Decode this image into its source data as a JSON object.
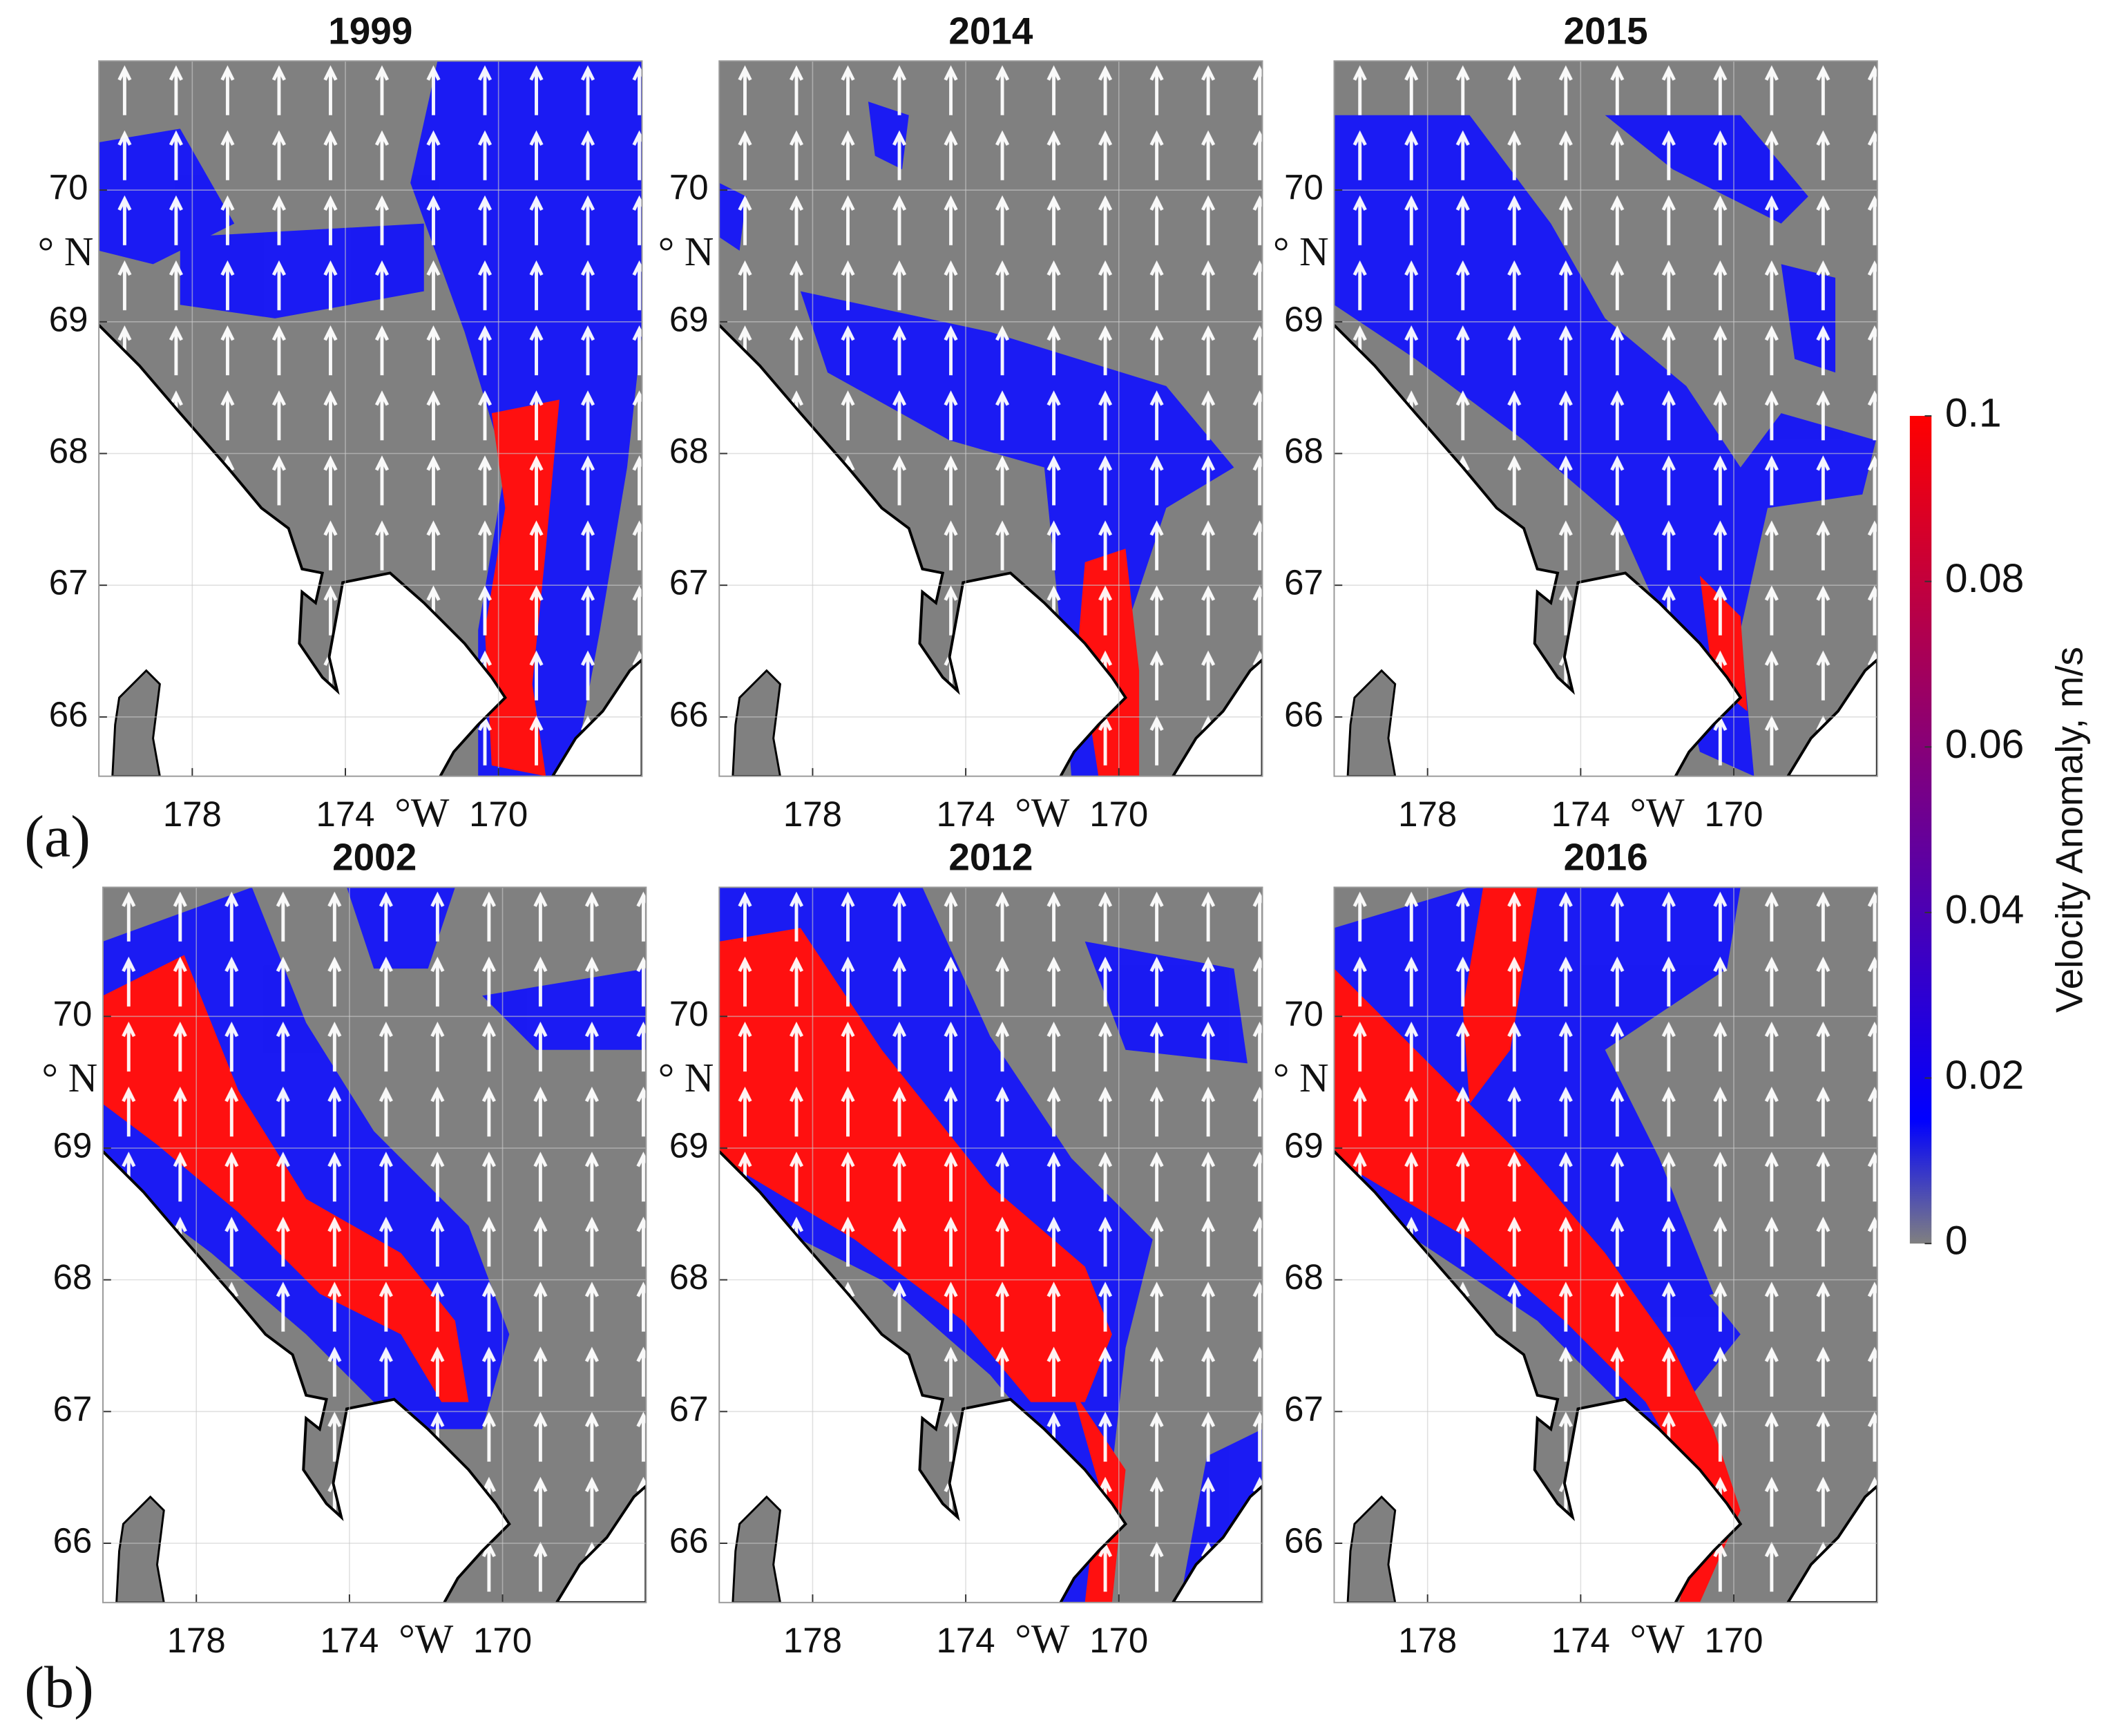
{
  "panel_labels": [
    "(a)",
    "(b)"
  ],
  "chart_data": [
    {
      "type": "map",
      "title": "1999",
      "xlim": [
        180.44,
        166.25
      ],
      "ylim": [
        65.55,
        70.98
      ],
      "xticks": [
        178,
        174,
        170
      ],
      "yticks": [
        66,
        67,
        68,
        69,
        70
      ],
      "xlabel": "°W",
      "ylabel": "° N",
      "grid": true
    },
    {
      "type": "map",
      "title": "2014",
      "xlim": [
        180.44,
        166.25
      ],
      "ylim": [
        65.55,
        70.98
      ],
      "xticks": [
        178,
        174,
        170
      ],
      "yticks": [
        66,
        67,
        68,
        69,
        70
      ],
      "xlabel": "°W",
      "ylabel": "° N",
      "grid": true
    },
    {
      "type": "map",
      "title": "2015",
      "xlim": [
        180.44,
        166.25
      ],
      "ylim": [
        65.55,
        70.98
      ],
      "xticks": [
        178,
        174,
        170
      ],
      "yticks": [
        66,
        67,
        68,
        69,
        70
      ],
      "xlabel": "°W",
      "ylabel": "° N",
      "grid": true
    },
    {
      "type": "map",
      "title": "2002",
      "xlim": [
        180.44,
        166.25
      ],
      "ylim": [
        65.55,
        70.98
      ],
      "xticks": [
        178,
        174,
        170
      ],
      "yticks": [
        66,
        67,
        68,
        69,
        70
      ],
      "xlabel": "°W",
      "ylabel": "° N",
      "grid": true
    },
    {
      "type": "map",
      "title": "2012",
      "xlim": [
        180.44,
        166.25
      ],
      "ylim": [
        65.55,
        70.98
      ],
      "xticks": [
        178,
        174,
        170
      ],
      "yticks": [
        66,
        67,
        68,
        69,
        70
      ],
      "xlabel": "°W",
      "ylabel": "° N",
      "grid": true
    },
    {
      "type": "map",
      "title": "2016",
      "xlim": [
        180.44,
        166.25
      ],
      "ylim": [
        65.55,
        70.98
      ],
      "xticks": [
        178,
        174,
        170
      ],
      "yticks": [
        66,
        67,
        68,
        69,
        70
      ],
      "xlabel": "°W",
      "ylabel": "° N",
      "grid": true
    }
  ],
  "colorbar": {
    "label": "Velocity Anomaly, m/s",
    "lim": [
      0,
      0.1
    ],
    "ticks": [
      0,
      0.02,
      0.04,
      0.06,
      0.08,
      0.1
    ],
    "colormap": [
      "#808080",
      "#0000ff",
      "#ff0000"
    ]
  }
}
